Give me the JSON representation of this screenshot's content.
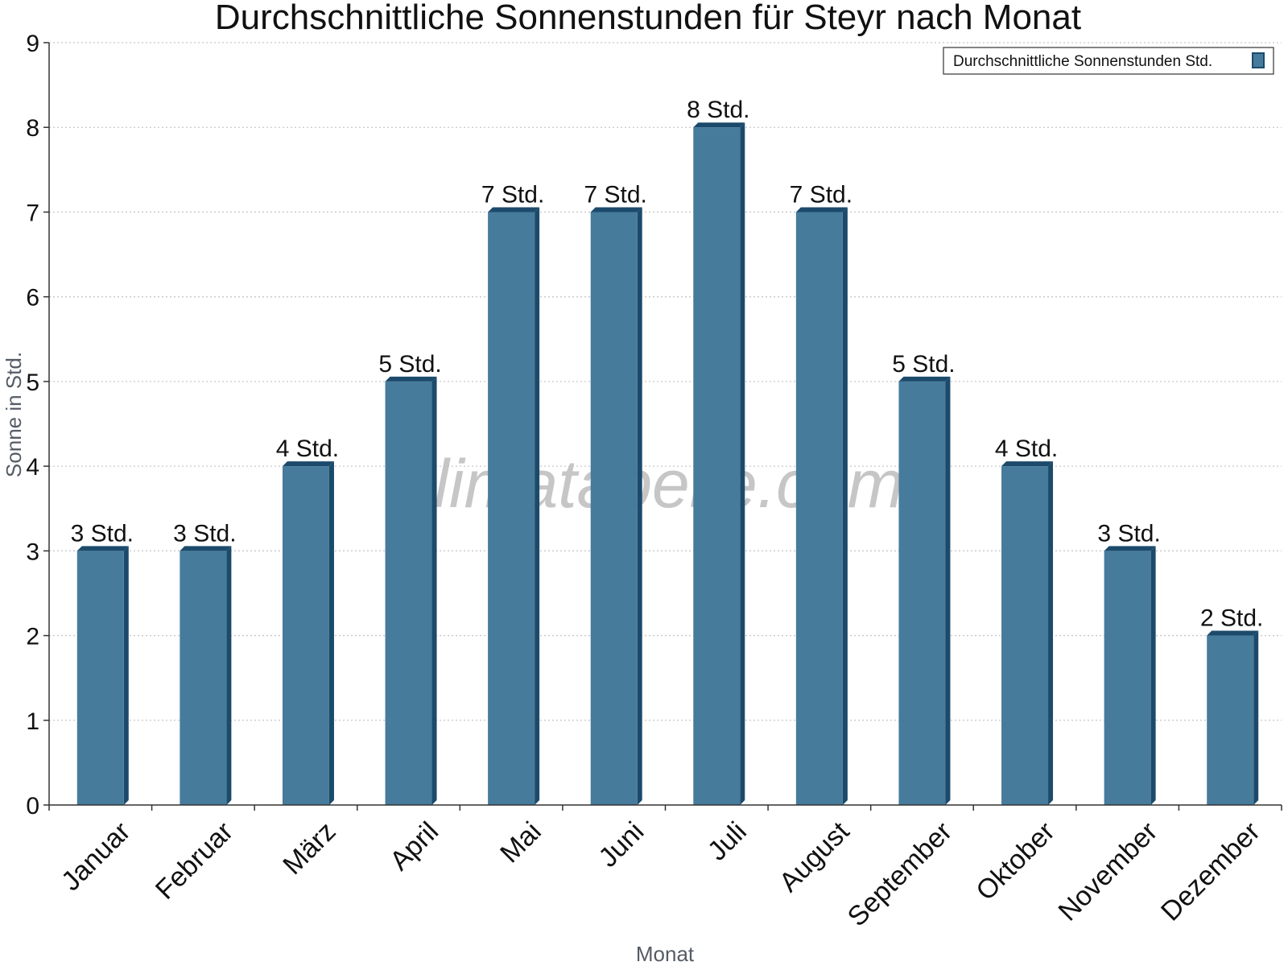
{
  "chart_data": {
    "type": "bar",
    "title": "Durchschnittliche Sonnenstunden für Steyr nach Monat",
    "xlabel": "Monat",
    "ylabel": "Sonne in Std.",
    "ylim": [
      0,
      9
    ],
    "yticks": [
      0,
      1,
      2,
      3,
      4,
      5,
      6,
      7,
      8,
      9
    ],
    "grid": true,
    "legend_position": "top-right",
    "categories": [
      "Januar",
      "Februar",
      "März",
      "April",
      "Mai",
      "Juni",
      "Juli",
      "August",
      "September",
      "Oktober",
      "November",
      "Dezember"
    ],
    "series": [
      {
        "name": "Durchschnittliche Sonnenstunden Std.",
        "color": "#467b9c",
        "values": [
          3,
          3,
          4,
          5,
          7,
          7,
          8,
          7,
          5,
          4,
          3,
          2
        ],
        "labels": [
          "3 Std.",
          "3 Std.",
          "4 Std.",
          "5 Std.",
          "7 Std.",
          "7 Std.",
          "8 Std.",
          "7 Std.",
          "5 Std.",
          "4 Std.",
          "3 Std.",
          "2 Std."
        ]
      }
    ]
  },
  "watermark": "klimatabelle.com",
  "colors": {
    "bar": "#467b9c",
    "bar_edge": "#1c4a6b",
    "grid": "#c8c8c8",
    "axis": "#333333"
  }
}
